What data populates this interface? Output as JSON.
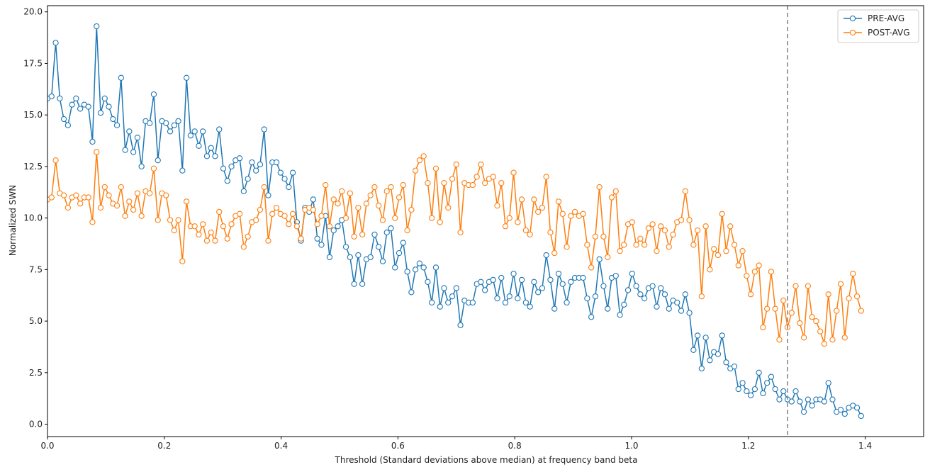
{
  "chart_data": {
    "type": "line",
    "title": "",
    "xlabel": "Threshold (Standard deviations above median) at frequency band beta",
    "ylabel": "Normalized SWN",
    "xlim": [
      0.0,
      1.5
    ],
    "ylim": [
      -0.6,
      20.3
    ],
    "xticks": [
      0.0,
      0.2,
      0.4,
      0.6,
      0.8,
      1.0,
      1.2,
      1.4
    ],
    "xtick_labels": [
      "0.0",
      "0.2",
      "0.4",
      "0.6",
      "0.8",
      "1.0",
      "1.2",
      "1.4"
    ],
    "yticks": [
      0.0,
      2.5,
      5.0,
      7.5,
      10.0,
      12.5,
      15.0,
      17.5,
      20.0
    ],
    "ytick_labels": [
      "0.0",
      "2.5",
      "5.0",
      "7.5",
      "10.0",
      "12.5",
      "15.0",
      "17.5",
      "20.0"
    ],
    "grid": false,
    "legend_position": "top-right",
    "vline": {
      "x": 1.267,
      "style": "dashed",
      "color": "#808080"
    },
    "x": {
      "start": 0.0,
      "step": 0.007,
      "count": 215
    },
    "series": [
      {
        "name": "PRE-AVG",
        "color": "#1f77b4",
        "values": [
          15.8,
          15.9,
          18.5,
          15.8,
          14.8,
          14.5,
          15.5,
          15.8,
          15.3,
          15.5,
          15.4,
          13.7,
          19.3,
          15.1,
          15.8,
          15.4,
          14.8,
          14.5,
          16.8,
          13.3,
          14.2,
          13.2,
          13.9,
          12.5,
          14.7,
          14.6,
          16.0,
          12.8,
          14.7,
          14.6,
          14.2,
          14.5,
          14.7,
          12.3,
          16.8,
          14.0,
          14.2,
          13.5,
          14.2,
          13.0,
          13.4,
          13.0,
          14.3,
          12.4,
          11.8,
          12.5,
          12.8,
          12.9,
          11.3,
          11.9,
          12.7,
          12.3,
          12.6,
          14.3,
          11.1,
          12.7,
          12.7,
          12.2,
          11.9,
          11.5,
          12.2,
          9.8,
          8.9,
          10.5,
          10.3,
          10.9,
          9.0,
          8.7,
          10.1,
          8.1,
          9.4,
          9.6,
          9.9,
          8.6,
          8.1,
          6.8,
          8.2,
          6.8,
          8.0,
          8.1,
          9.2,
          8.6,
          7.9,
          9.3,
          9.5,
          7.6,
          8.3,
          8.8,
          7.4,
          6.4,
          7.5,
          7.8,
          7.6,
          6.9,
          5.9,
          7.6,
          5.7,
          6.6,
          5.9,
          6.2,
          6.6,
          4.8,
          6.0,
          5.9,
          5.9,
          6.8,
          6.9,
          6.5,
          6.9,
          7.0,
          6.1,
          7.1,
          5.9,
          6.2,
          7.3,
          6.1,
          7.0,
          5.9,
          5.7,
          6.9,
          6.4,
          6.6,
          8.2,
          7.0,
          5.6,
          7.3,
          6.8,
          5.9,
          6.9,
          7.1,
          7.1,
          7.1,
          6.1,
          5.2,
          6.2,
          8.0,
          6.7,
          5.6,
          7.1,
          7.2,
          5.3,
          5.8,
          6.5,
          7.3,
          6.7,
          6.3,
          6.1,
          6.6,
          6.7,
          5.7,
          6.6,
          6.3,
          5.6,
          6.0,
          5.9,
          5.5,
          6.3,
          5.4,
          3.6,
          4.3,
          2.7,
          4.2,
          3.1,
          3.5,
          3.4,
          4.3,
          3.0,
          2.7,
          2.8,
          1.7,
          2.0,
          1.6,
          1.4,
          1.7,
          2.5,
          1.5,
          2.0,
          2.3,
          1.7,
          1.2,
          1.6,
          1.2,
          1.1,
          1.6,
          1.1,
          0.6,
          1.2,
          0.9,
          1.2,
          1.2,
          1.1,
          2.0,
          1.2,
          0.6,
          0.7,
          0.5,
          0.8,
          0.9,
          0.8,
          0.4
        ]
      },
      {
        "name": "POST-AVG",
        "color": "#ff7f0e",
        "values": [
          10.9,
          11.0,
          12.8,
          11.2,
          11.1,
          10.5,
          11.0,
          11.1,
          10.7,
          11.0,
          11.0,
          9.8,
          13.2,
          10.5,
          11.5,
          11.1,
          10.7,
          10.6,
          11.5,
          10.1,
          10.8,
          10.4,
          11.2,
          10.1,
          11.3,
          11.2,
          12.4,
          9.9,
          11.2,
          11.1,
          9.9,
          9.4,
          9.9,
          7.9,
          10.8,
          9.6,
          9.6,
          9.2,
          9.7,
          8.9,
          9.3,
          8.9,
          10.3,
          9.6,
          9.0,
          9.7,
          10.1,
          10.2,
          8.6,
          9.1,
          9.8,
          9.9,
          10.4,
          11.5,
          8.9,
          10.2,
          10.5,
          10.2,
          10.1,
          9.7,
          10.2,
          9.6,
          9.0,
          10.4,
          10.5,
          10.4,
          9.7,
          10.1,
          11.6,
          9.6,
          10.9,
          10.7,
          11.3,
          10.0,
          11.2,
          9.1,
          10.5,
          9.2,
          10.7,
          11.1,
          11.5,
          10.6,
          9.9,
          11.3,
          11.5,
          10.0,
          11.0,
          11.6,
          9.4,
          10.4,
          12.3,
          12.8,
          13.0,
          11.7,
          10.0,
          12.4,
          9.8,
          11.7,
          10.5,
          11.9,
          12.6,
          9.3,
          11.7,
          11.6,
          11.6,
          12.0,
          12.6,
          11.7,
          11.9,
          12.0,
          10.6,
          11.7,
          9.6,
          10.0,
          12.2,
          9.8,
          10.9,
          9.4,
          9.2,
          10.9,
          10.3,
          10.5,
          12.0,
          9.3,
          8.3,
          10.8,
          10.2,
          8.6,
          10.1,
          10.3,
          10.1,
          10.2,
          8.7,
          7.6,
          9.1,
          11.5,
          9.1,
          8.1,
          11.0,
          11.3,
          8.4,
          8.7,
          9.7,
          9.8,
          8.7,
          9.0,
          8.7,
          9.5,
          9.7,
          8.4,
          9.6,
          9.4,
          8.6,
          9.2,
          9.8,
          9.9,
          11.3,
          9.9,
          8.7,
          9.4,
          6.2,
          9.6,
          7.5,
          8.5,
          8.2,
          10.2,
          8.4,
          9.6,
          8.7,
          7.7,
          8.4,
          7.2,
          6.3,
          7.4,
          7.7,
          4.7,
          5.6,
          7.4,
          5.6,
          4.1,
          6.0,
          4.7,
          5.4,
          6.7,
          4.9,
          4.2,
          6.7,
          5.2,
          5.0,
          4.5,
          3.9,
          6.3,
          4.1,
          5.5,
          6.8,
          4.2,
          6.1,
          7.3,
          6.2,
          5.5
        ]
      }
    ]
  }
}
